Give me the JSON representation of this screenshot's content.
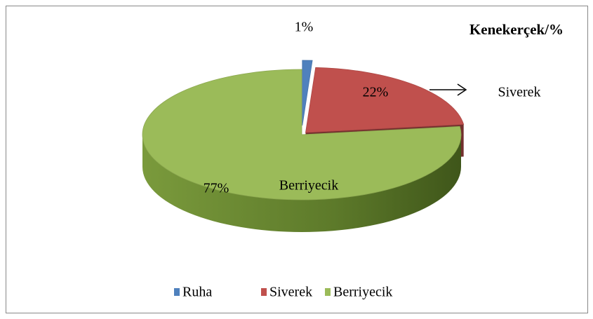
{
  "chart_data": {
    "type": "pie",
    "title": "Kenekerçek/%",
    "categories": [
      "Ruha",
      "Siverek",
      "Berriyecik"
    ],
    "values": [
      1,
      22,
      77
    ],
    "value_labels": [
      "1%",
      "22%",
      "77%"
    ],
    "colors": [
      "#4f81bd",
      "#c0504d",
      "#9bbb59"
    ],
    "annotations": [
      "Siverek",
      "Berriyecik"
    ],
    "legend": "bottom"
  }
}
